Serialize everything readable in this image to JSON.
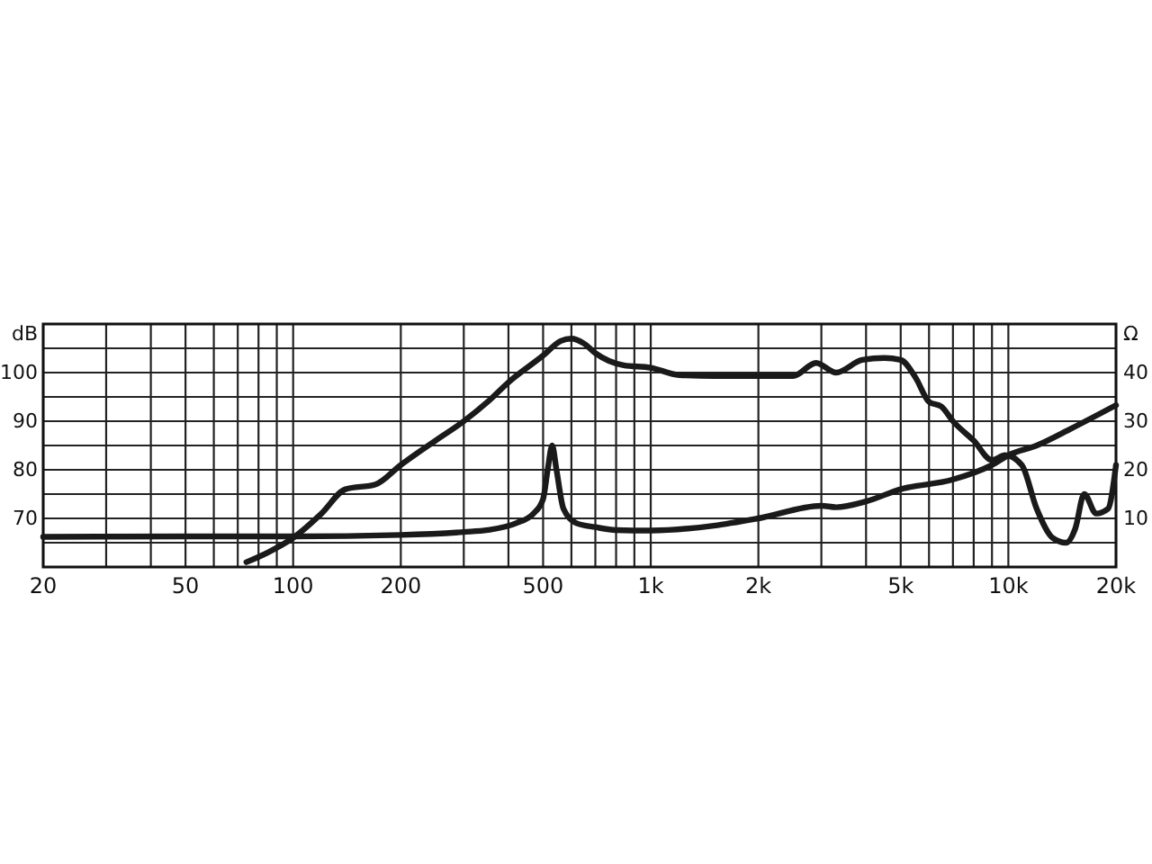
{
  "chart_data": {
    "type": "line",
    "ylabel": "dB",
    "y2label": "Ω",
    "log": "x",
    "grid": true,
    "line_style": "solid",
    "xlim": [
      20,
      20000
    ],
    "xticks": [
      20,
      {
        "value": 30,
        "label": null
      },
      {
        "value": 40,
        "label": null
      },
      50,
      {
        "value": 60,
        "label": null
      },
      {
        "value": 70,
        "label": null
      },
      {
        "value": 80,
        "label": null
      },
      {
        "value": 90,
        "label": null
      },
      100,
      200,
      {
        "value": 300,
        "label": null
      },
      {
        "value": 400,
        "label": null
      },
      500,
      {
        "value": 600,
        "label": null
      },
      {
        "value": 700,
        "label": null
      },
      {
        "value": 800,
        "label": null
      },
      {
        "value": 900,
        "label": null
      },
      {
        "value": 1000,
        "label": "1k"
      },
      {
        "value": 2000,
        "label": "2k"
      },
      {
        "value": 3000,
        "label": null
      },
      {
        "value": 4000,
        "label": null
      },
      {
        "value": 5000,
        "label": "5k"
      },
      {
        "value": 6000,
        "label": null
      },
      {
        "value": 7000,
        "label": null
      },
      {
        "value": 8000,
        "label": null
      },
      {
        "value": 9000,
        "label": null
      },
      {
        "value": 10000,
        "label": "10k"
      },
      {
        "value": 20000,
        "label": "20k"
      }
    ],
    "ylim": [
      60,
      110
    ],
    "yticks": [
      {
        "value": 65,
        "label": null
      },
      70,
      {
        "value": 75,
        "label": null
      },
      80,
      {
        "value": 85,
        "label": null
      },
      90,
      {
        "value": 95,
        "label": null
      },
      100,
      {
        "value": 105,
        "label": null
      }
    ],
    "y2lim": [
      0,
      50
    ],
    "y2ticks": [
      10,
      20,
      30,
      40
    ],
    "series": [
      {
        "color": "#1a1a1a",
        "x": [
          74,
          85,
          100,
          120,
          140,
          170,
          200,
          250,
          300,
          350,
          400,
          500,
          560,
          600,
          650,
          700,
          840,
          1000,
          1200,
          1500,
          2000,
          2500,
          2900,
          3300,
          3900,
          4500,
          5000,
          5500,
          6000,
          6500,
          7000,
          8000,
          9000,
          9800,
          10900,
          12000,
          13300,
          14500,
          15400,
          16300,
          17600,
          19000,
          20000
        ],
        "values": [
          61,
          63,
          66,
          71,
          76,
          77,
          81,
          86,
          90,
          94,
          98,
          103.5,
          106.5,
          107,
          106,
          104,
          101.5,
          101,
          99.5,
          99.3,
          99.3,
          99.3,
          102,
          100,
          102.6,
          103,
          102.6,
          99,
          94,
          93,
          90,
          86,
          82,
          83,
          81,
          72,
          66,
          65,
          68,
          75,
          71,
          72,
          81
        ]
      },
      {
        "color": "#1a1a1a",
        "axis": "y2",
        "x": [
          20,
          50,
          100,
          200,
          300,
          350,
          420,
          470,
          500,
          515,
          530,
          545,
          570,
          620,
          700,
          800,
          1000,
          1500,
          2000,
          3000,
          3300,
          4000,
          5000,
          7000,
          9000,
          10000,
          12000,
          15000,
          20000
        ],
        "values": [
          6.2,
          6.3,
          6.3,
          6.6,
          7.2,
          7.6,
          9,
          11,
          14,
          20,
          25,
          20,
          12,
          9,
          8.2,
          7.6,
          7.5,
          8.5,
          10,
          12.6,
          12.3,
          13.5,
          16,
          18,
          21,
          23,
          25,
          28.5,
          33.3
        ]
      }
    ]
  }
}
